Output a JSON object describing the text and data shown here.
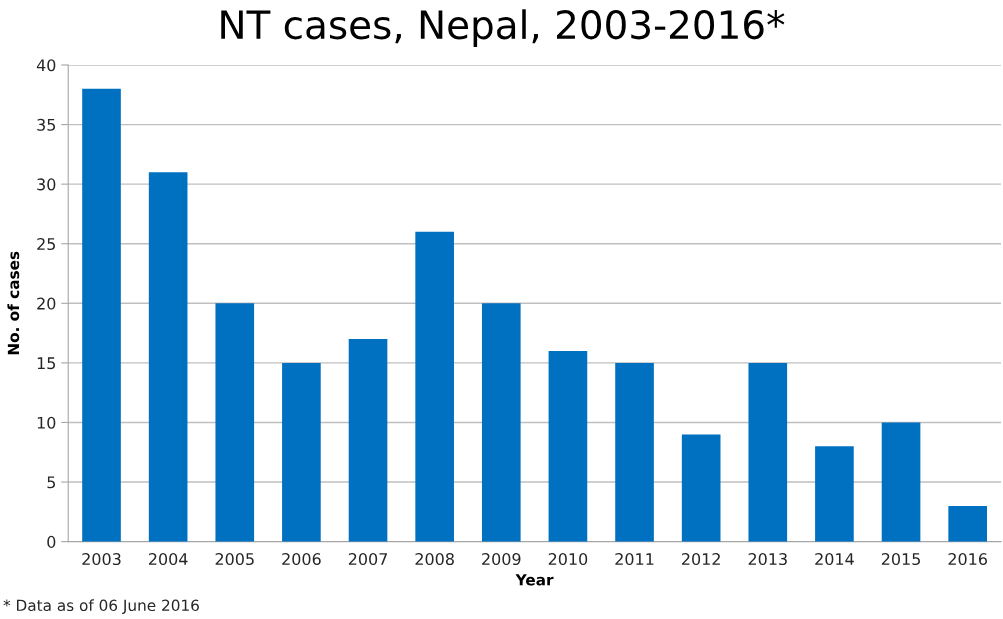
{
  "chart_data": {
    "type": "bar",
    "title": "NT cases, Nepal, 2003-2016*",
    "categories": [
      "2003",
      "2004",
      "2005",
      "2006",
      "2007",
      "2008",
      "2009",
      "2010",
      "2011",
      "2012",
      "2013",
      "2014",
      "2015",
      "2016"
    ],
    "values": [
      38,
      31,
      20,
      15,
      17,
      26,
      20,
      16,
      15,
      9,
      15,
      8,
      10,
      3
    ],
    "color": "#0070c0",
    "xlabel": "Year",
    "ylabel": "No. of cases",
    "ylim": [
      0,
      40
    ],
    "yticks": [
      0,
      5,
      10,
      15,
      20,
      25,
      30,
      35,
      40
    ],
    "grid": "y",
    "legend": false,
    "annotations": [
      "* Data as of 06 June 2016"
    ]
  }
}
